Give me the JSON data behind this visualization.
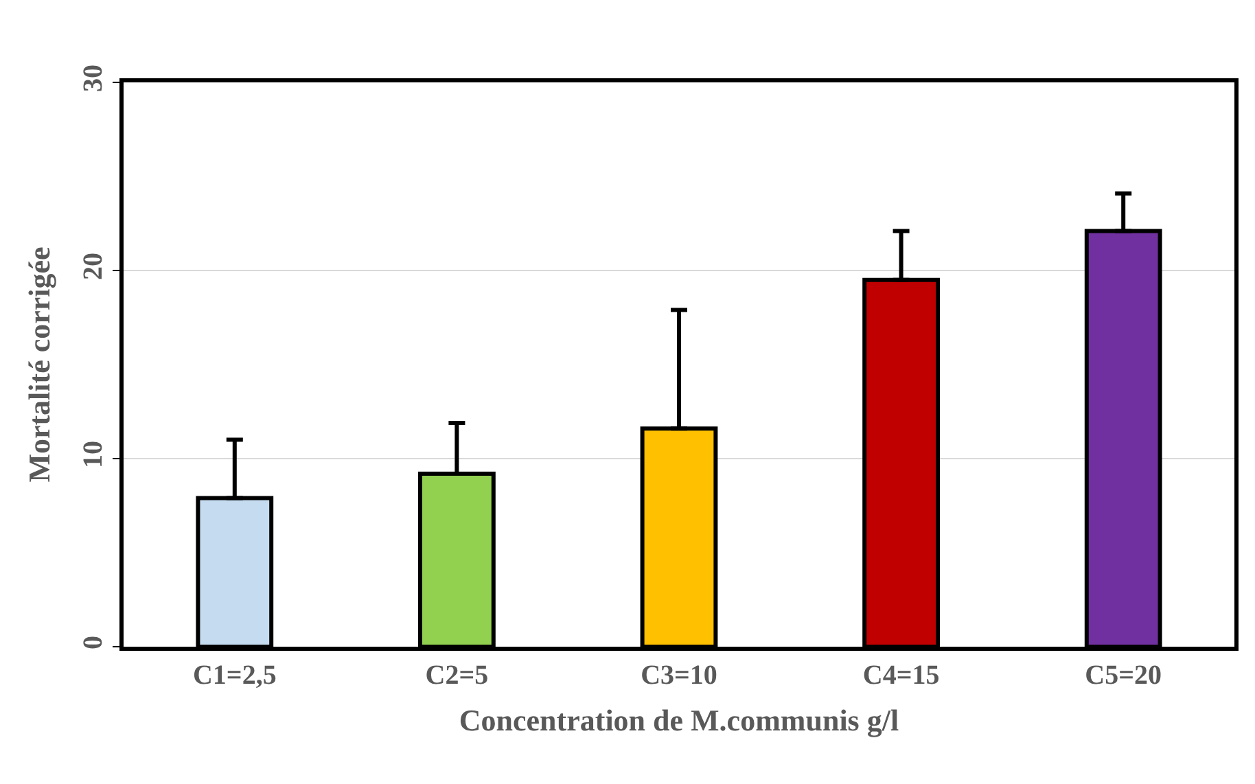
{
  "chart_data": {
    "type": "bar",
    "xlabel": "Concentration de M.communis g/l",
    "ylabel": "Mortalité corrigée",
    "categories": [
      "C1=2,5",
      "C2=5",
      "C3=10",
      "C4=15",
      "C5=20"
    ],
    "values": [
      7.9,
      9.2,
      11.6,
      19.5,
      22.1
    ],
    "colors": [
      "#c5dcf0",
      "#92d050",
      "#ffc000",
      "#c00000",
      "#7030a0"
    ],
    "errors": [
      [
        7.9,
        11.0
      ],
      [
        9.2,
        11.9
      ],
      [
        11.6,
        17.9
      ],
      [
        19.5,
        22.1
      ],
      [
        22.1,
        24.1
      ]
    ],
    "ylim": [
      0,
      30
    ],
    "yticks": [
      0,
      10,
      20,
      30
    ],
    "grid": "y"
  }
}
